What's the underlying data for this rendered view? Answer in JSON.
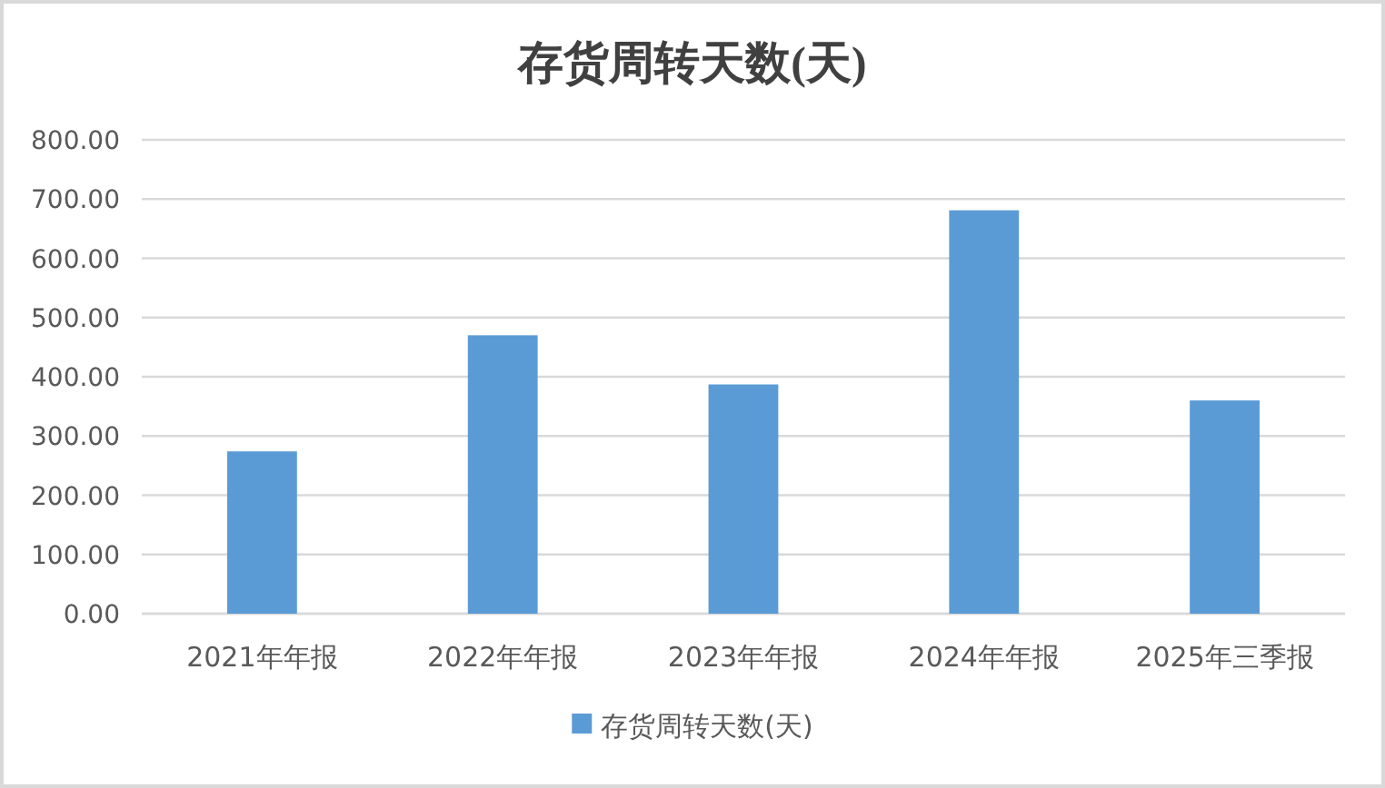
{
  "chart_data": {
    "type": "bar",
    "title": "存货周转天数(天)",
    "categories": [
      "2021年年报",
      "2022年年报",
      "2023年年报",
      "2024年年报",
      "2025年三季报"
    ],
    "series": [
      {
        "name": "存货周转天数(天)",
        "color": "#5b9bd5",
        "values": [
          274,
          470,
          387,
          681,
          360
        ]
      }
    ],
    "ylim": [
      0,
      800
    ],
    "yticks": [
      {
        "value": 0,
        "label": "0.00"
      },
      {
        "value": 100,
        "label": "100.00"
      },
      {
        "value": 200,
        "label": "200.00"
      },
      {
        "value": 300,
        "label": "300.00"
      },
      {
        "value": 400,
        "label": "400.00"
      },
      {
        "value": 500,
        "label": "500.00"
      },
      {
        "value": 600,
        "label": "600.00"
      },
      {
        "value": 700,
        "label": "700.00"
      },
      {
        "value": 800,
        "label": "800.00"
      }
    ],
    "grid": "y",
    "legend": "bottom"
  }
}
